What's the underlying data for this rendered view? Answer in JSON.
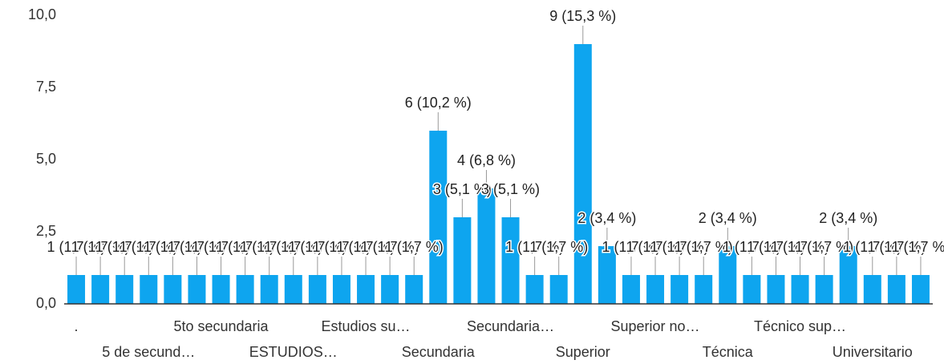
{
  "chart_data": {
    "type": "bar",
    "color": "#0ea5ef",
    "categories": [
      ".",
      null,
      null,
      "5 de secund…",
      null,
      null,
      "5to secundaria",
      null,
      null,
      "ESTUDIOS…",
      null,
      null,
      "Estudios su…",
      null,
      null,
      "Secundaria",
      null,
      null,
      "Secundaria…",
      null,
      null,
      "Superior",
      null,
      null,
      "Superior no…",
      null,
      null,
      "Técnica",
      null,
      null,
      "Técnico sup…",
      null,
      null,
      "Universitario",
      null,
      null
    ],
    "values": [
      1,
      1,
      1,
      1,
      1,
      1,
      1,
      1,
      1,
      1,
      1,
      1,
      1,
      1,
      1,
      6,
      3,
      4,
      3,
      1,
      1,
      9,
      2,
      1,
      1,
      1,
      1,
      2,
      1,
      1,
      1,
      1,
      2,
      1,
      1,
      1
    ],
    "value_labels": [
      "1 (1,7 %)",
      "1 (1,7 %)",
      "1 (1,7 %)",
      "1 (1,7 %)",
      "1 (1,7 %)",
      "1 (1,7 %)",
      "1 (1,7 %)",
      "1 (1,7 %)",
      "1 (1,7 %)",
      "1 (1,7 %)",
      "1 (1,7 %)",
      "1 (1,7 %)",
      "1 (1,7 %)",
      "1 (1,7 %)",
      "1 (1,7 %)",
      "6 (10,2 %)",
      "3 (5,1 %)",
      "4 (6,8 %)",
      "3 (5,1 %)",
      "1 (1,7 %)",
      "1 (1,7 %)",
      "9 (15,3 %)",
      "2 (3,4 %)",
      "1 (1,7 %)",
      "1 (1,7 %)",
      "1 (1,7 %)",
      "1 (1,7 %)",
      "2 (3,4 %)",
      "1 (1,7 %)",
      "1 (1,7 %)",
      "1 (1,7 %)",
      "1 (1,7 %)",
      "2 (3,4 %)",
      "1 (1,7 %)",
      "1 (1,7 %)",
      "1 (1,7 %)"
    ],
    "ylim": [
      0,
      10
    ],
    "yticks": [
      {
        "value": 0,
        "label": "0,0"
      },
      {
        "value": 2.5,
        "label": "2,5"
      },
      {
        "value": 5,
        "label": "5,0"
      },
      {
        "value": 7.5,
        "label": "7,5"
      },
      {
        "value": 10,
        "label": "10,0"
      }
    ],
    "grid": false
  }
}
